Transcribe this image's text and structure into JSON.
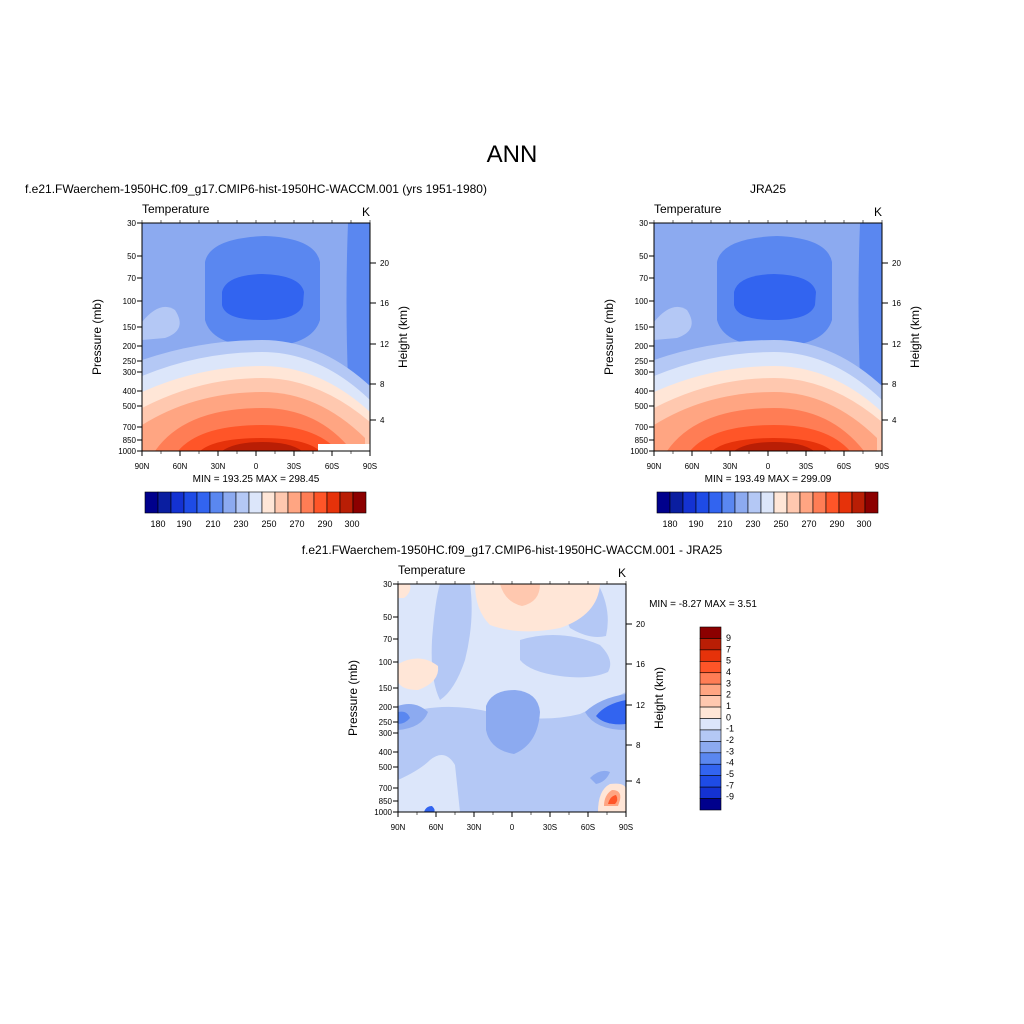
{
  "page_title": "ANN",
  "chart_data": [
    {
      "id": "model",
      "type": "heatmap",
      "title": "f.e21.FWaerchem-1950HC.f09_g17.CMIP6-hist-1950HC-WACCM.001 (yrs 1951-1980)",
      "left_label": "Temperature",
      "right_label": "K",
      "ylabel": "Pressure (mb)",
      "ylabel_right": "Height (km)",
      "x_ticks": [
        "90N",
        "60N",
        "30N",
        "0",
        "30S",
        "60S",
        "90S"
      ],
      "y_ticks": [
        "30",
        "50",
        "70",
        "100",
        "150",
        "200",
        "250",
        "300",
        "400",
        "500",
        "700",
        "850",
        "1000"
      ],
      "y_right_ticks": [
        "20",
        "16",
        "12",
        "8",
        "4"
      ],
      "stats": "MIN = 193.25  MAX = 298.45",
      "min": 193.25,
      "max": 298.45,
      "colorbar_labels": [
        "180",
        "190",
        "210",
        "230",
        "250",
        "270",
        "290",
        "300"
      ]
    },
    {
      "id": "obs",
      "type": "heatmap",
      "title": "JRA25",
      "left_label": "Temperature",
      "right_label": "K",
      "ylabel": "Pressure (mb)",
      "ylabel_right": "Height (km)",
      "x_ticks": [
        "90N",
        "60N",
        "30N",
        "0",
        "30S",
        "60S",
        "90S"
      ],
      "y_ticks": [
        "30",
        "50",
        "70",
        "100",
        "150",
        "200",
        "250",
        "300",
        "400",
        "500",
        "700",
        "850",
        "1000"
      ],
      "y_right_ticks": [
        "20",
        "16",
        "12",
        "8",
        "4"
      ],
      "stats": "MIN = 193.49  MAX = 299.09",
      "min": 193.49,
      "max": 299.09,
      "colorbar_labels": [
        "180",
        "190",
        "210",
        "230",
        "250",
        "270",
        "290",
        "300"
      ]
    },
    {
      "id": "diff",
      "type": "heatmap",
      "title": "f.e21.FWaerchem-1950HC.f09_g17.CMIP6-hist-1950HC-WACCM.001 - JRA25",
      "left_label": "Temperature",
      "right_label": "K",
      "ylabel": "Pressure (mb)",
      "ylabel_right": "Height (km)",
      "x_ticks": [
        "90N",
        "60N",
        "30N",
        "0",
        "30S",
        "60S",
        "90S"
      ],
      "y_ticks": [
        "30",
        "50",
        "70",
        "100",
        "150",
        "200",
        "250",
        "300",
        "400",
        "500",
        "700",
        "850",
        "1000"
      ],
      "y_right_ticks": [
        "20",
        "16",
        "12",
        "8",
        "4"
      ],
      "stats": "MIN =  -8.27  MAX =   3.51",
      "min": -8.27,
      "max": 3.51,
      "colorbar_labels": [
        "9",
        "7",
        "5",
        "4",
        "3",
        "2",
        "1",
        "0",
        "-1",
        "-2",
        "-3",
        "-4",
        "-5",
        "-7",
        "-9"
      ]
    }
  ],
  "colors": {
    "abs_scale": [
      "#00008c",
      "#0a1ea0",
      "#1432d2",
      "#1e4be6",
      "#3264f0",
      "#5a87f0",
      "#8caaf0",
      "#b4c8f5",
      "#dce6fa",
      "#ffe6d7",
      "#ffc8af",
      "#ffa582",
      "#ff7d55",
      "#ff5528",
      "#e6320a",
      "#b91e05",
      "#8c0000"
    ],
    "diff_scale": [
      "#8c0000",
      "#b91e05",
      "#e6320a",
      "#ff5528",
      "#ff7d55",
      "#ffa582",
      "#ffc8af",
      "#ffe6d7",
      "#dce6fa",
      "#b4c8f5",
      "#8caaf0",
      "#5a87f0",
      "#3264f0",
      "#1e4be6",
      "#1432d2",
      "#00008c"
    ]
  }
}
